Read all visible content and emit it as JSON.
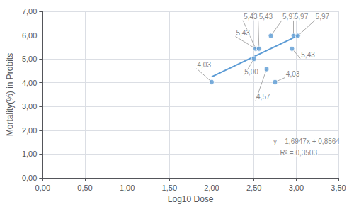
{
  "chart_data": {
    "type": "scatter",
    "xlabel": "Log10 Dose",
    "ylabel": "Mortality(%) in Probits",
    "series": [
      {
        "type": "scatter",
        "color": "#5B9BD5",
        "x": [
          2.0,
          2.5,
          2.52,
          2.56,
          2.65,
          2.7,
          2.75,
          2.95,
          2.97,
          3.02
        ],
        "values": [
          4.03,
          5.0,
          5.43,
          5.43,
          4.57,
          5.97,
          4.03,
          5.43,
          5.97,
          5.97
        ]
      },
      {
        "type": "line",
        "color": "#5B9BD5",
        "x": [
          2.0,
          3.02
        ],
        "values": [
          4.2458,
          5.974394
        ]
      }
    ],
    "annotations": [
      {
        "text": "5,43",
        "xy": [
          2.52,
          5.43
        ],
        "xytext": [
          2.37,
          6.62
        ]
      },
      {
        "text": "5,43",
        "xy": [
          2.56,
          5.43
        ],
        "xytext": [
          2.55,
          6.62
        ]
      },
      {
        "text": "5,43",
        "xy": [
          2.52,
          5.43
        ],
        "xytext": [
          2.28,
          5.95
        ]
      },
      {
        "text": "5,97",
        "xy": [
          2.7,
          5.97
        ],
        "xytext": [
          2.83,
          6.62
        ]
      },
      {
        "text": "5,97",
        "xy": [
          2.97,
          5.97
        ],
        "xytext": [
          2.97,
          6.62
        ]
      },
      {
        "text": "5,97",
        "xy": [
          3.02,
          5.97
        ],
        "xytext": [
          3.22,
          6.62
        ]
      },
      {
        "text": "4,03",
        "xy": [
          2.0,
          4.03
        ],
        "xytext": [
          1.82,
          4.6
        ]
      },
      {
        "text": "5,00",
        "xy": [
          2.5,
          5.0
        ],
        "xytext": [
          2.38,
          4.3
        ]
      },
      {
        "text": "4,57",
        "xy": [
          2.65,
          4.57
        ],
        "xytext": [
          2.52,
          3.25
        ]
      },
      {
        "text": "5,43",
        "xy": [
          2.95,
          5.43
        ],
        "xytext": [
          3.05,
          5.02
        ]
      },
      {
        "text": "4,03",
        "xy": [
          2.75,
          4.03
        ],
        "xytext": [
          2.87,
          4.22
        ]
      },
      {
        "text": "y = 1,6947x + 0,8564",
        "xytext": [
          2.72,
          1.4
        ]
      },
      {
        "text": "R² = 0,3503",
        "xytext": [
          2.8,
          0.9
        ]
      }
    ],
    "xlim": [
      0.0,
      3.5
    ],
    "ylim": [
      0.0,
      7.0
    ],
    "xticks": [
      {
        "value": 0.0,
        "label": "0,00"
      },
      {
        "value": 0.5,
        "label": "0,50"
      },
      {
        "value": 1.0,
        "label": "1,00"
      },
      {
        "value": 1.5,
        "label": "1,50"
      },
      {
        "value": 2.0,
        "label": "2,00"
      },
      {
        "value": 2.5,
        "label": "2,50"
      },
      {
        "value": 3.0,
        "label": "3,00"
      },
      {
        "value": 3.5,
        "label": "3,50"
      }
    ],
    "yticks": [
      {
        "value": 0.0,
        "label": "0,00"
      },
      {
        "value": 1.0,
        "label": "1,00"
      },
      {
        "value": 2.0,
        "label": "2,00"
      },
      {
        "value": 3.0,
        "label": "3,00"
      },
      {
        "value": 4.0,
        "label": "4,00"
      },
      {
        "value": 5.0,
        "label": "5,00"
      },
      {
        "value": 6.0,
        "label": "6,00"
      },
      {
        "value": 7.0,
        "label": "7,00"
      }
    ],
    "grid": true
  }
}
